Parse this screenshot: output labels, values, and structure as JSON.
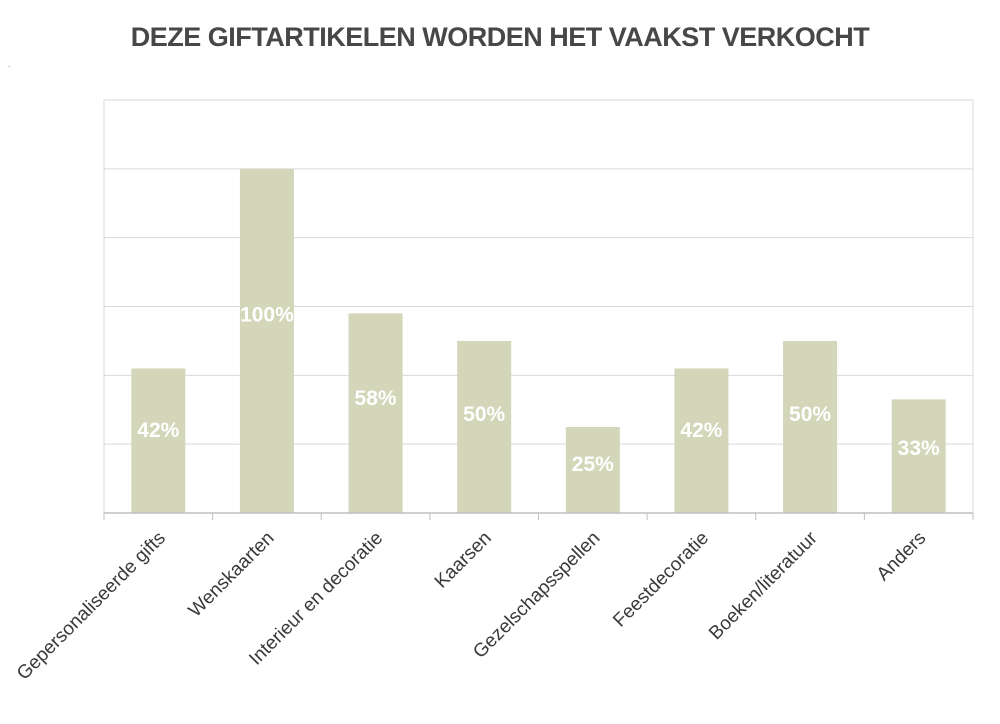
{
  "chart_data": {
    "type": "bar",
    "title": "DEZE GIFTARTIKELEN WORDEN HET VAAKST VERKOCHT",
    "categories": [
      "Gepersonaliseerde gifts",
      "Wenskaarten",
      "Interieur en decoratie",
      "Kaarsen",
      "Gezelschapsspellen",
      "Feestdecoratie",
      "Boeken/literatuur",
      "Anders"
    ],
    "values": [
      42,
      100,
      58,
      50,
      25,
      42,
      50,
      33
    ],
    "data_labels": [
      "42%",
      "100%",
      "58%",
      "50%",
      "25%",
      "42%",
      "50%",
      "33%"
    ],
    "xlabel": "",
    "ylabel": "",
    "ylim": [
      0,
      120
    ],
    "grid": true,
    "legend": "none"
  },
  "colors": {
    "bar": "#d3d6b8",
    "grid": "#d9d9d9",
    "axis": "#bfbfbf",
    "title": "#474747"
  },
  "marker": "."
}
